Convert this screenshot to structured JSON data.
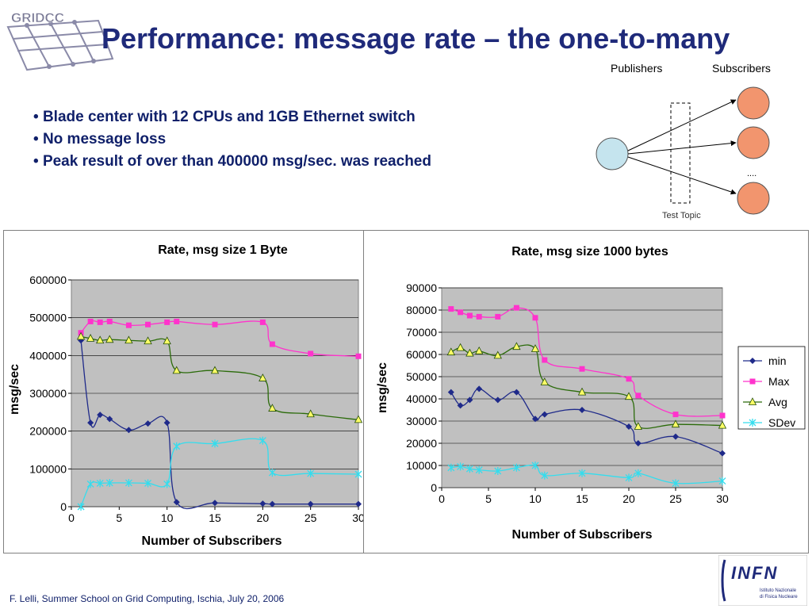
{
  "slide": {
    "title": "Performance: message rate – the one-to-many",
    "logo_text": "GRIDCC",
    "bullets": [
      "Blade center with 12 CPUs and 1GB Ethernet switch",
      "No message loss",
      "Peak result of over than 400000 msg/sec. was reached"
    ],
    "footer": "F. Lelli, Summer School on Grid Computing, Ischia, July 20, 2006",
    "infn_logo": {
      "brand": "INFN",
      "caption_line1": "Istituto Nazionale",
      "caption_line2": "di Fisica Nucleare"
    }
  },
  "diagram": {
    "publishers_label": "Publishers",
    "subscribers_label": "Subscribers",
    "topic_label": "Test Topic",
    "ellipsis": "....",
    "publisher_color": "#c5e4ee",
    "subscriber_color": "#f2956e"
  },
  "colors": {
    "plot_bg": "#c0c0c0",
    "min": "#1f2a8a",
    "max": "#ff33cc",
    "avg": "#2b6b0a",
    "avg_marker": "#ffff66",
    "sdev": "#33ddee"
  },
  "chart_data": [
    {
      "type": "line",
      "title": "Rate, msg size 1 Byte",
      "xlabel": "Number of Subscribers",
      "ylabel": "msg/sec",
      "xlim": [
        0,
        30
      ],
      "ylim": [
        0,
        600000
      ],
      "xticks": [
        0,
        5,
        10,
        15,
        20,
        25,
        30
      ],
      "yticks": [
        0,
        100000,
        200000,
        300000,
        400000,
        500000,
        600000
      ],
      "grid": true,
      "legend": null,
      "x": [
        1,
        2,
        3,
        4,
        6,
        8,
        10,
        11,
        15,
        20,
        21,
        25,
        30
      ],
      "series": [
        {
          "name": "min",
          "values": [
            440000,
            222000,
            243000,
            232000,
            203000,
            220000,
            222000,
            12000,
            10000,
            8000,
            7000,
            7000,
            7000
          ]
        },
        {
          "name": "Max",
          "values": [
            460000,
            490000,
            488000,
            490000,
            480000,
            482000,
            488000,
            490000,
            482000,
            488000,
            430000,
            405000,
            398000
          ]
        },
        {
          "name": "Avg",
          "values": [
            450000,
            445000,
            440000,
            442000,
            440000,
            438000,
            438000,
            360000,
            360000,
            340000,
            260000,
            245000,
            230000
          ]
        },
        {
          "name": "SDev",
          "values": [
            0,
            60000,
            62000,
            63000,
            63000,
            62000,
            60000,
            160000,
            167000,
            175000,
            90000,
            88000,
            86000
          ]
        }
      ]
    },
    {
      "type": "line",
      "title": "Rate, msg size 1000 bytes",
      "xlabel": "Number of Subscribers",
      "ylabel": "msg/sec",
      "xlim": [
        0,
        30
      ],
      "ylim": [
        0,
        90000
      ],
      "xticks": [
        0,
        5,
        10,
        15,
        20,
        25,
        30
      ],
      "yticks": [
        0,
        10000,
        20000,
        30000,
        40000,
        50000,
        60000,
        70000,
        80000,
        90000
      ],
      "grid": true,
      "legend": "right",
      "x": [
        1,
        2,
        3,
        4,
        6,
        8,
        10,
        11,
        15,
        20,
        21,
        25,
        30
      ],
      "series": [
        {
          "name": "min",
          "values": [
            43000,
            37000,
            39500,
            44500,
            39500,
            43000,
            31000,
            33000,
            35000,
            27500,
            20000,
            23000,
            15500
          ]
        },
        {
          "name": "Max",
          "values": [
            80500,
            79000,
            77500,
            77000,
            77000,
            81000,
            76500,
            57500,
            53500,
            49000,
            41500,
            33000,
            32500
          ]
        },
        {
          "name": "Avg",
          "values": [
            61000,
            63000,
            60500,
            61500,
            59500,
            63500,
            62500,
            47500,
            43000,
            41000,
            27500,
            28500,
            28000
          ]
        },
        {
          "name": "SDev",
          "values": [
            9000,
            9500,
            8500,
            8000,
            7500,
            9000,
            10000,
            5500,
            6500,
            4500,
            6500,
            2000,
            3000
          ]
        }
      ]
    }
  ]
}
